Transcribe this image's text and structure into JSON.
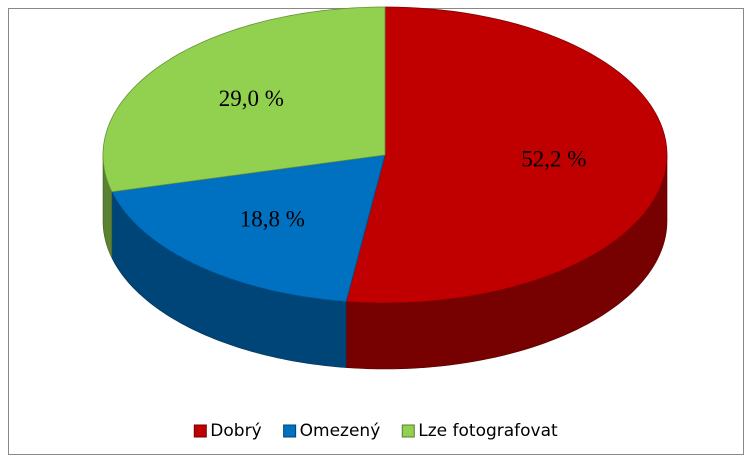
{
  "chart_data": {
    "type": "pie",
    "categories": [
      "Dobrý",
      "Omezený",
      "Lze fotografovat"
    ],
    "values": [
      52.2,
      18.8,
      29.0
    ],
    "value_labels": [
      "52,2 %",
      "18,8 %",
      "29,0 %"
    ],
    "colors": [
      "#c00000",
      "#0070c0",
      "#92d050"
    ],
    "legend": "bottom"
  }
}
